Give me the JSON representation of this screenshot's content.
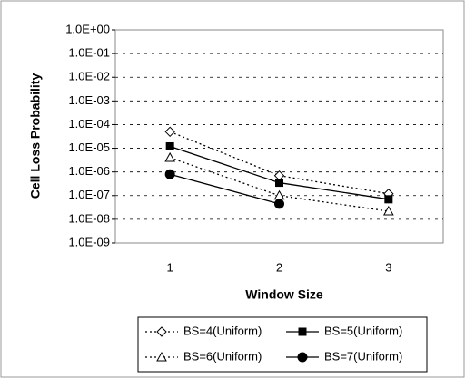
{
  "chart_data": {
    "type": "line",
    "x_label": "Window Size",
    "y_label": "Cell Loss Probability",
    "categories": [
      "1",
      "2",
      "3"
    ],
    "log_y": true,
    "grid": true,
    "legend_position": "bottom",
    "ylim": [
      1e-09,
      1
    ],
    "yticks": [
      {
        "value": 1,
        "label": "1.0E+00"
      },
      {
        "value": 0.1,
        "label": "1.0E-01"
      },
      {
        "value": 0.01,
        "label": "1.0E-02"
      },
      {
        "value": 0.001,
        "label": "1.0E-03"
      },
      {
        "value": 0.0001,
        "label": "1.0E-04"
      },
      {
        "value": 1e-05,
        "label": "1.0E-05"
      },
      {
        "value": 1e-06,
        "label": "1.0E-06"
      },
      {
        "value": 1e-07,
        "label": "1.0E-07"
      },
      {
        "value": 1e-08,
        "label": "1.0E-08"
      },
      {
        "value": 1e-09,
        "label": "1.0E-09"
      }
    ],
    "series": [
      {
        "name": "BS=4(Uniform)",
        "color": "#000000",
        "line_style": "dotted",
        "marker": "diamond-open",
        "values": [
          5e-05,
          7e-07,
          1.2e-07
        ]
      },
      {
        "name": "BS=5(Uniform)",
        "color": "#000000",
        "line_style": "solid",
        "marker": "square-filled",
        "values": [
          1.2e-05,
          3.5e-07,
          7e-08
        ]
      },
      {
        "name": "BS=6(Uniform)",
        "color": "#000000",
        "line_style": "dotted",
        "marker": "triangle-open",
        "values": [
          4e-06,
          1e-07,
          2.2e-08
        ]
      },
      {
        "name": "BS=7(Uniform)",
        "color": "#000000",
        "line_style": "solid",
        "marker": "circle-filled",
        "values": [
          8e-07,
          4.5e-08,
          null
        ]
      }
    ]
  }
}
